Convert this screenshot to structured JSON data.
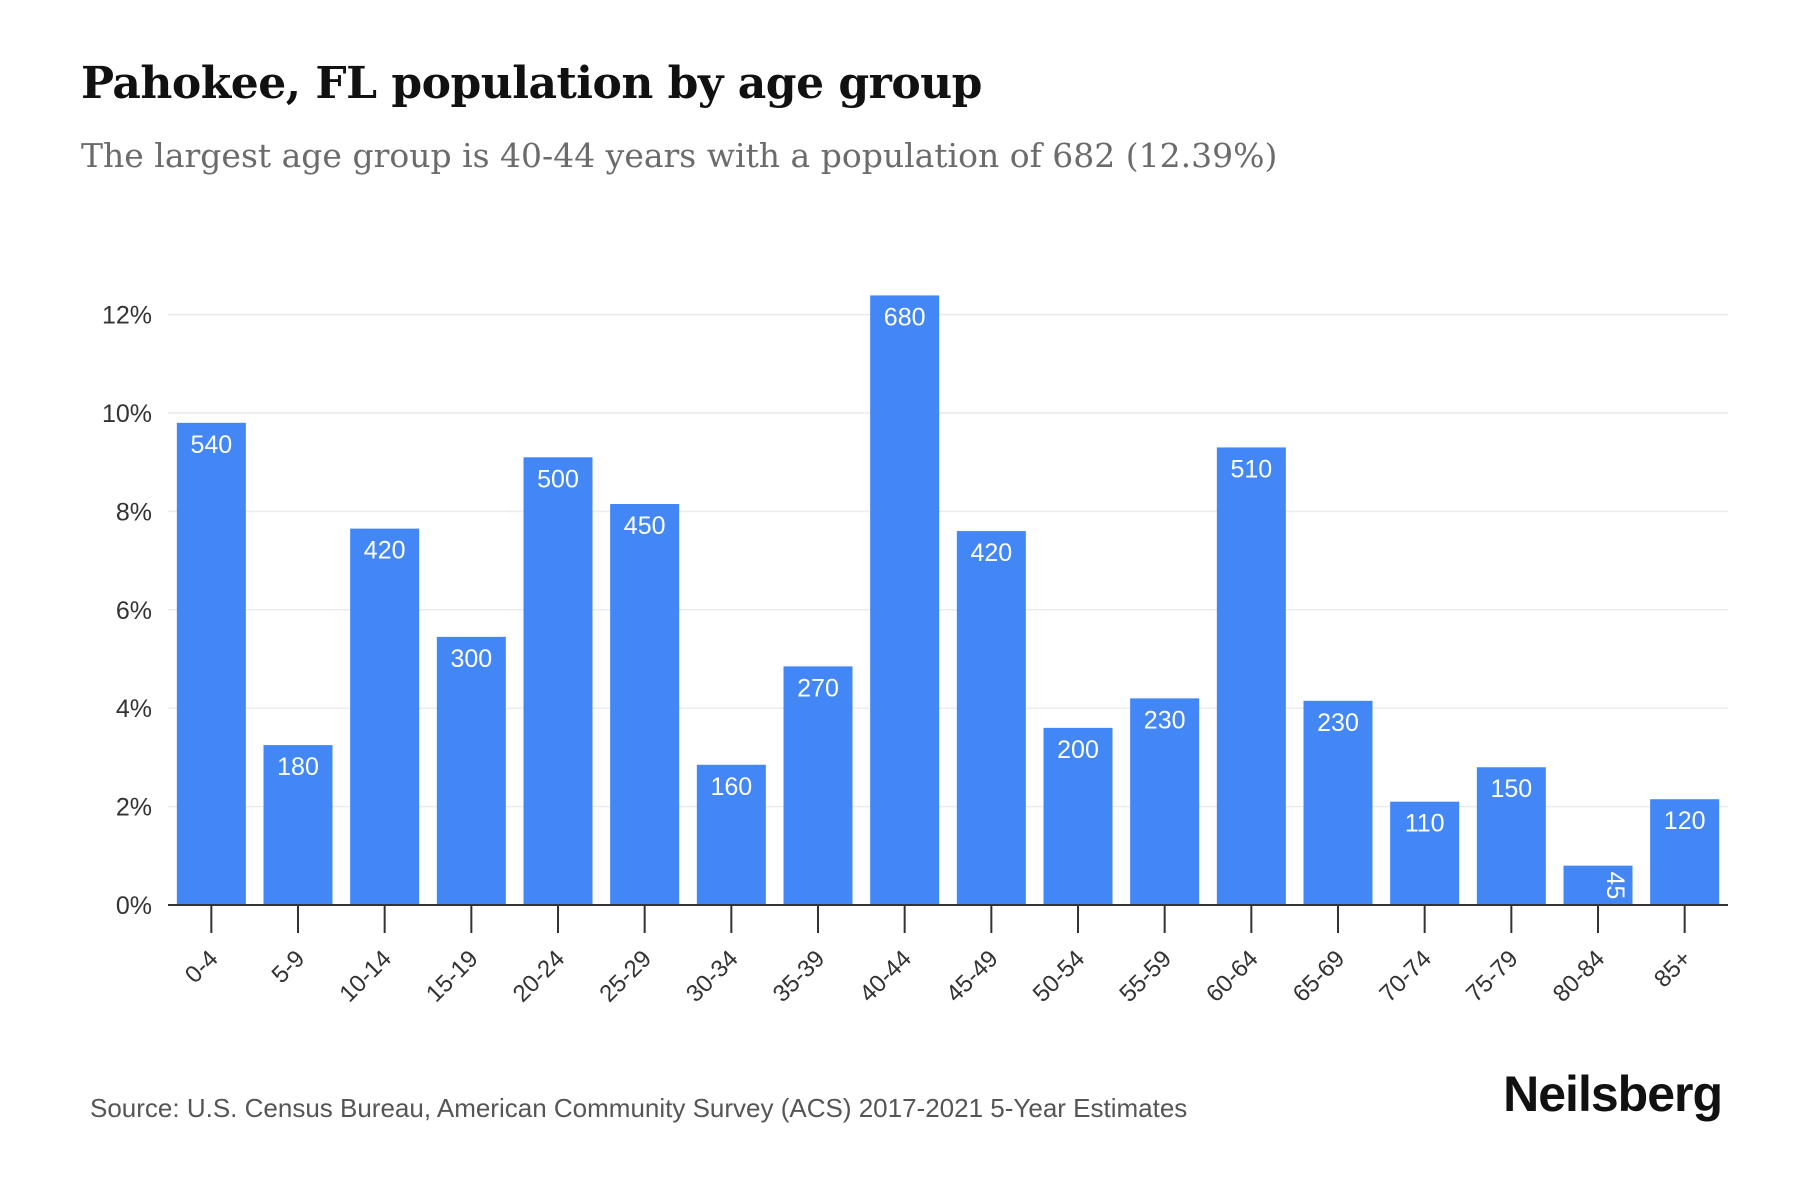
{
  "header": {
    "title": "Pahokee, FL population by age group",
    "subtitle": "The largest age group is 40-44 years with a population of 682 (12.39%)"
  },
  "footer": {
    "source": "Source: U.S. Census Bureau, American Community Survey (ACS) 2017-2021 5-Year Estimates",
    "brand": "Neilsberg"
  },
  "colors": {
    "bar": "#4287f5",
    "bar_label": "#ffffff",
    "grid": "#ececec",
    "axis": "#333333",
    "tick_text": "#333333"
  },
  "chart_data": {
    "type": "bar",
    "title": "Pahokee, FL population by age group",
    "subtitle": "The largest age group is 40-44 years with a population of 682 (12.39%)",
    "xlabel": "",
    "ylabel": "",
    "categories": [
      "0-4",
      "5-9",
      "10-14",
      "15-19",
      "20-24",
      "25-29",
      "30-34",
      "35-39",
      "40-44",
      "45-49",
      "50-54",
      "55-59",
      "60-64",
      "65-69",
      "70-74",
      "75-79",
      "80-84",
      "85+"
    ],
    "values_percent": [
      9.8,
      3.25,
      7.65,
      5.45,
      9.1,
      8.15,
      2.85,
      4.85,
      12.39,
      7.6,
      3.6,
      4.2,
      9.3,
      4.15,
      2.1,
      2.8,
      0.8,
      2.15
    ],
    "data_labels": [
      "540",
      "180",
      "420",
      "300",
      "500",
      "450",
      "160",
      "270",
      "680",
      "420",
      "200",
      "230",
      "510",
      "230",
      "110",
      "150",
      "45",
      "120"
    ],
    "y_ticks": [
      "0%",
      "2%",
      "4%",
      "6%",
      "8%",
      "10%",
      "12%"
    ],
    "y_tick_values": [
      0,
      2,
      4,
      6,
      8,
      10,
      12
    ],
    "ylim": [
      0,
      12.5
    ],
    "grid": true,
    "legend": "none"
  }
}
